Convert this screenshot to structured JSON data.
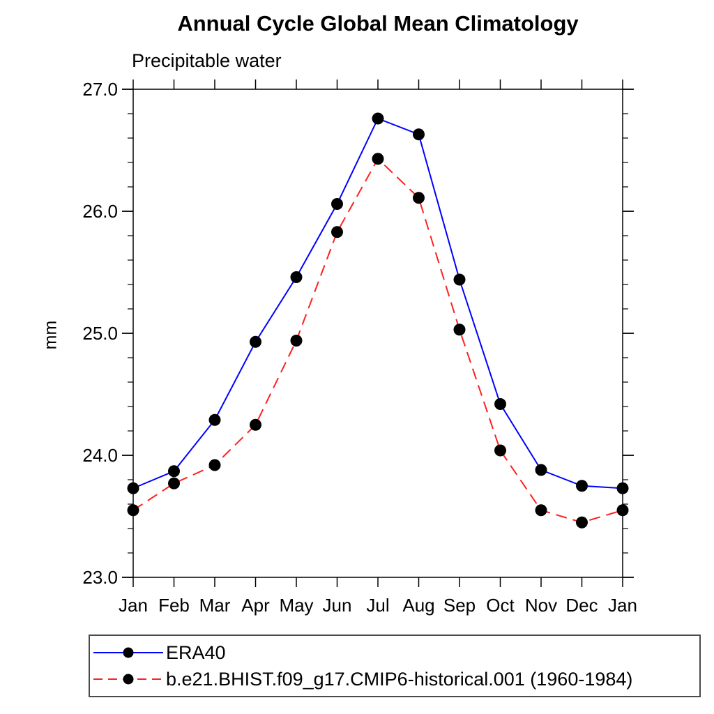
{
  "page": {
    "title": "Annual Cycle Global Mean Climatology",
    "subtitle": "Precipitable water",
    "y_axis_label": "mm"
  },
  "colors": {
    "axis": "#000000",
    "marker": "#000000",
    "series1": "#0000ff",
    "series2": "#ff2020",
    "legend_border": "#4a4a4a"
  },
  "chart_data": {
    "type": "line",
    "title": "Annual Cycle Global Mean Climatology",
    "subtitle": "Precipitable water",
    "xlabel": "",
    "ylabel": "mm",
    "categories": [
      "Jan",
      "Feb",
      "Mar",
      "Apr",
      "May",
      "Jun",
      "Jul",
      "Aug",
      "Sep",
      "Oct",
      "Nov",
      "Dec",
      "Jan"
    ],
    "ylim": [
      23.0,
      27.0
    ],
    "ytick_major": 1.0,
    "ytick_minor": 0.2,
    "ytick_labels": [
      "23.0",
      "24.0",
      "25.0",
      "26.0",
      "27.0"
    ],
    "grid": false,
    "legend_position": "bottom-left-box",
    "series": [
      {
        "name": "ERA40",
        "color": "#0000ff",
        "line_style": "solid",
        "marker": "circle",
        "marker_color": "#000000",
        "values": [
          23.73,
          23.87,
          24.29,
          24.93,
          25.46,
          26.06,
          26.76,
          26.63,
          25.44,
          24.42,
          23.88,
          23.75,
          23.73
        ]
      },
      {
        "name": "b.e21.BHIST.f09_g17.CMIP6-historical.001 (1960-1984)",
        "color": "#ff2020",
        "line_style": "dashed",
        "marker": "circle",
        "marker_color": "#000000",
        "values": [
          23.55,
          23.77,
          23.92,
          24.25,
          24.94,
          25.83,
          26.43,
          26.11,
          25.03,
          24.04,
          23.55,
          23.45,
          23.55
        ]
      }
    ]
  }
}
